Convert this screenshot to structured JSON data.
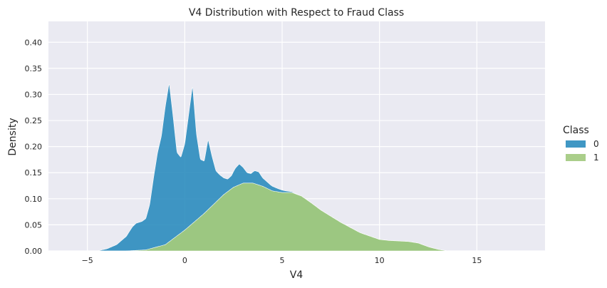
{
  "chart_data": {
    "type": "area",
    "title": "V4 Distribution with Respect to Fraud Class",
    "xlabel": "V4",
    "ylabel": "Density",
    "xlim": [
      -7,
      18.5
    ],
    "ylim": [
      0,
      0.44
    ],
    "xticks": [
      "−5",
      "0",
      "5",
      "10",
      "15"
    ],
    "xtick_values": [
      -5,
      0,
      5,
      10,
      15
    ],
    "yticks": [
      "0.00",
      "0.05",
      "0.10",
      "0.15",
      "0.20",
      "0.25",
      "0.30",
      "0.35",
      "0.40"
    ],
    "ytick_values": [
      0,
      0.05,
      0.1,
      0.15,
      0.2,
      0.25,
      0.3,
      0.35,
      0.4
    ],
    "grid": true,
    "stacked": true,
    "legend": {
      "title": "Class",
      "placement": "center-right"
    },
    "series": [
      {
        "name": "0",
        "color": "#2b8cbe",
        "x": [
          -4.5,
          -4.0,
          -3.5,
          -3.0,
          -2.7,
          -2.5,
          -2.2,
          -2.0,
          -1.8,
          -1.6,
          -1.4,
          -1.2,
          -1.0,
          -0.8,
          -0.6,
          -0.4,
          -0.2,
          0.0,
          0.2,
          0.4,
          0.6,
          0.8,
          1.0,
          1.2,
          1.4,
          1.6,
          1.8,
          2.0,
          2.2,
          2.4,
          2.6,
          2.8,
          3.0,
          3.2,
          3.4,
          3.6,
          3.8,
          4.0,
          4.4,
          4.8,
          5.2,
          5.6,
          6.0
        ],
        "values": [
          0.0,
          0.004,
          0.012,
          0.028,
          0.045,
          0.052,
          0.055,
          0.06,
          0.085,
          0.135,
          0.18,
          0.21,
          0.265,
          0.305,
          0.235,
          0.16,
          0.145,
          0.165,
          0.215,
          0.265,
          0.165,
          0.11,
          0.1,
          0.135,
          0.095,
          0.06,
          0.045,
          0.032,
          0.024,
          0.025,
          0.035,
          0.04,
          0.03,
          0.02,
          0.018,
          0.025,
          0.025,
          0.016,
          0.01,
          0.006,
          0.003,
          0.001,
          0.0
        ]
      },
      {
        "name": "1",
        "color": "#a1c97d",
        "x": [
          -4.5,
          -4.0,
          -3.0,
          -2.0,
          -1.0,
          0.0,
          1.0,
          2.0,
          2.5,
          3.0,
          3.5,
          4.0,
          4.5,
          5.0,
          5.5,
          6.0,
          6.5,
          7.0,
          8.0,
          9.0,
          10.0,
          10.5,
          11.0,
          11.5,
          12.0,
          12.5,
          13.0,
          13.5
        ],
        "values": [
          0.0,
          0.0,
          0.0,
          0.002,
          0.012,
          0.04,
          0.072,
          0.108,
          0.122,
          0.13,
          0.13,
          0.124,
          0.115,
          0.112,
          0.112,
          0.105,
          0.092,
          0.078,
          0.055,
          0.035,
          0.022,
          0.02,
          0.019,
          0.018,
          0.015,
          0.008,
          0.003,
          0.0
        ]
      }
    ]
  }
}
